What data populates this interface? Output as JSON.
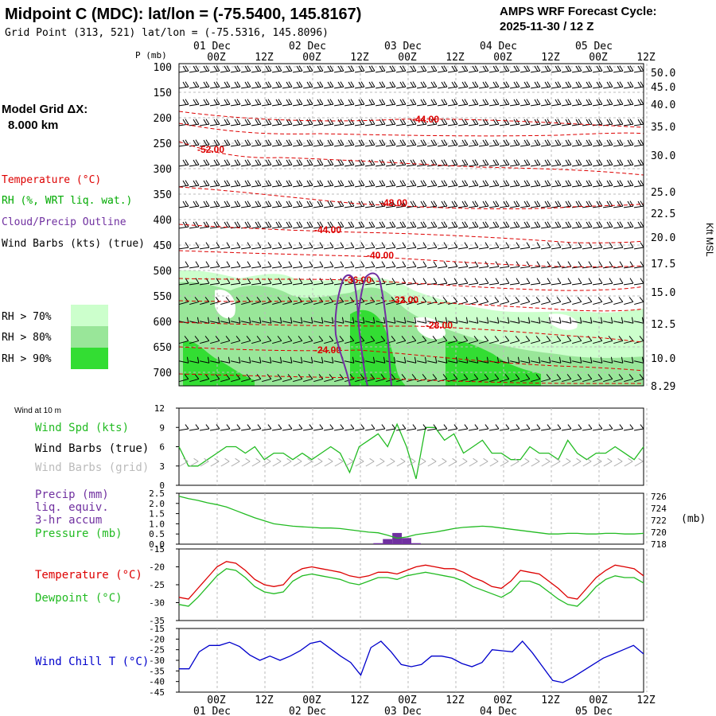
{
  "header": {
    "title": "Midpoint C (MDC):  lat/lon = (-75.5400, 145.8167)",
    "subtitle": "Grid Point (313, 521) lat/lon = (-75.5316, 145.8096)",
    "cycle_line1": "AMPS WRF Forecast Cycle:",
    "cycle_line2": "2025-11-30 / 12  Z"
  },
  "side": {
    "model_grid_line1": "Model Grid ΔX:",
    "model_grid_line2": "8.000 km",
    "legend_temperature": "Temperature (°C)",
    "legend_rh": "RH (%, WRT liq. wat.)",
    "legend_cloud": "Cloud/Precip Outline",
    "legend_wind": "Wind Barbs (kts) (true)",
    "rh70": "RH > 70%",
    "rh80": "RH > 80%",
    "rh90": "RH > 90%",
    "colors": {
      "rh70": "#ccffcc",
      "rh80": "#99e699",
      "rh90": "#33dd33",
      "temperature": "#dd0000",
      "rh": "#00aa00",
      "cloud": "#7030a0",
      "wind_chill": "#0000cc"
    }
  },
  "time_axis": {
    "top_dates": [
      "01 Dec",
      "02 Dec",
      "03 Dec",
      "04 Dec",
      "05 Dec"
    ],
    "hour_labels": [
      "00Z",
      "12Z",
      "00Z",
      "12Z",
      "00Z",
      "12Z",
      "00Z",
      "12Z",
      "00Z",
      "12Z"
    ],
    "bottom_dates": [
      "01 Dec",
      "02 Dec",
      "03 Dec",
      "04 Dec",
      "05 Dec"
    ]
  },
  "chart_data": [
    {
      "type": "time-height",
      "ylabel": "P (mb)",
      "right_label": "Kft MSL",
      "pressure_ticks": [
        "100",
        "150",
        "200",
        "250",
        "300",
        "350",
        "400",
        "450",
        "500",
        "550",
        "600",
        "650",
        "700"
      ],
      "height_ticks": [
        "50.0",
        "45.0",
        "40.0",
        "35.0",
        "30.0",
        "25.0",
        "22.5",
        "20.0",
        "17.5",
        "15.0",
        "12.5",
        "10.0",
        "8.29"
      ],
      "temperature_labels": [
        "-44.00",
        "-52.00",
        "-48.00",
        "-44.00",
        "-40.00",
        "-36.00",
        "-32.00",
        "-28.00",
        "-24.00"
      ]
    },
    {
      "type": "line",
      "title_small": "Wind at 10 m",
      "label_speed": "Wind Spd (kts)",
      "label_barbs_true": "Wind Barbs (true)",
      "label_barbs_grid": "Wind Barbs (grid)",
      "yticks": [
        "0",
        "3",
        "6",
        "9",
        "12"
      ],
      "ylim": [
        0,
        12
      ],
      "series": [
        {
          "name": "Wind Spd (kts)",
          "color": "#22bb22",
          "values": [
            6,
            3,
            3,
            4,
            5,
            6,
            6,
            5,
            6,
            4,
            5,
            5,
            4,
            5,
            4,
            5,
            6,
            5,
            2,
            6,
            7,
            8,
            6,
            9.5,
            6,
            1,
            9,
            9,
            7,
            8,
            5,
            6,
            7,
            5,
            5,
            4,
            4,
            6,
            5,
            5,
            4,
            7,
            5,
            4,
            5,
            5,
            6,
            5,
            4,
            6
          ]
        }
      ]
    },
    {
      "type": "line+bar",
      "label_precip": "Precip (mm)",
      "label_liq": "liq. equiv.",
      "label_accum": "3-hr accum",
      "label_pressure": "Pressure (mb)",
      "right_unit": "(mb)",
      "yticks_left": [
        "0.0",
        "0.5",
        "1.0",
        "1.5",
        "2.0",
        "2.5"
      ],
      "yticks_right": [
        "718",
        "720",
        "722",
        "724",
        "726"
      ],
      "ylim_left": [
        0,
        2.5
      ],
      "ylim_right": [
        718,
        726.5
      ],
      "pressure": [
        726,
        725.6,
        725.3,
        724.9,
        724.6,
        724.2,
        723.6,
        723,
        722.4,
        721.9,
        721.4,
        721.2,
        721.0,
        720.9,
        720.8,
        720.7,
        720.7,
        720.6,
        720.4,
        720.2,
        720.0,
        719.9,
        719.5,
        719.0,
        719.2,
        719.6,
        719.8,
        720.0,
        720.3,
        720.6,
        720.8,
        720.9,
        721.0,
        720.9,
        720.7,
        720.5,
        720.3,
        720.1,
        719.9,
        719.7,
        719.7,
        719.8,
        719.8,
        719.7,
        719.7,
        719.8,
        719.8,
        719.7,
        719.7,
        719.8
      ],
      "precip": [
        0,
        0,
        0,
        0,
        0,
        0,
        0,
        0,
        0,
        0,
        0,
        0,
        0,
        0,
        0,
        0,
        0,
        0,
        0,
        0,
        0,
        0.05,
        0.25,
        0.55,
        0.3,
        0.05,
        0,
        0,
        0,
        0,
        0,
        0,
        0,
        0,
        0,
        0,
        0,
        0,
        0,
        0,
        0,
        0,
        0,
        0,
        0,
        0,
        0,
        0,
        0,
        0
      ]
    },
    {
      "type": "line",
      "label_temp": "Temperature (°C)",
      "label_dew": "Dewpoint (°C)",
      "yticks": [
        "-15",
        "-20",
        "-25",
        "-30",
        "-35"
      ],
      "ylim": [
        -35,
        -15
      ],
      "series": [
        {
          "name": "Temperature (°C)",
          "color": "#dd0000",
          "values": [
            -28.5,
            -29,
            -26,
            -23,
            -20,
            -18.5,
            -19,
            -21,
            -23.5,
            -25,
            -25.5,
            -25,
            -22,
            -20.5,
            -20,
            -20.5,
            -21,
            -21.5,
            -22.5,
            -23,
            -22.5,
            -21.5,
            -21.5,
            -22,
            -21,
            -20,
            -19.5,
            -20,
            -20.5,
            -20.5,
            -21.5,
            -23,
            -24,
            -25.5,
            -26,
            -24,
            -21,
            -21.5,
            -22,
            -24,
            -26,
            -28.5,
            -29,
            -26,
            -23,
            -21,
            -19.5,
            -20,
            -20.5,
            -22.5
          ]
        },
        {
          "name": "Dewpoint (°C)",
          "color": "#22bb22",
          "values": [
            -30.5,
            -31,
            -28.5,
            -25.5,
            -22.5,
            -20.5,
            -21,
            -23,
            -25.5,
            -27,
            -27.5,
            -27,
            -24,
            -22.5,
            -22,
            -22.5,
            -23,
            -23.5,
            -24.5,
            -25,
            -24,
            -23,
            -23,
            -23.5,
            -22.5,
            -22,
            -21.5,
            -22,
            -22.5,
            -23,
            -24,
            -25.5,
            -26.5,
            -27.5,
            -28.5,
            -27,
            -24,
            -24,
            -25,
            -27,
            -29,
            -30.5,
            -31,
            -28.5,
            -25.5,
            -23.5,
            -22.5,
            -23,
            -23,
            -24.5
          ]
        }
      ]
    },
    {
      "type": "line",
      "label": "Wind Chill T (°C)",
      "yticks": [
        "-15",
        "-20",
        "-25",
        "-30",
        "-35",
        "-40",
        "-45"
      ],
      "ylim": [
        -45,
        -15
      ],
      "series": [
        {
          "name": "Wind Chill T (°C)",
          "color": "#0000cc",
          "values": [
            -34,
            -34,
            -26,
            -23,
            -23,
            -21.5,
            -23.5,
            -27.5,
            -30,
            -28,
            -30,
            -28,
            -25.5,
            -22,
            -21,
            -24.5,
            -28,
            -31,
            -37,
            -24,
            -21,
            -26,
            -32,
            -33,
            -32,
            -28,
            -28,
            -29,
            -31.5,
            -33,
            -31,
            -25,
            -25.5,
            -26,
            -21,
            -26.5,
            -33,
            -39.5,
            -40.5,
            -38,
            -35,
            -32,
            -29,
            -27,
            -25,
            -23,
            -27
          ]
        }
      ]
    }
  ]
}
